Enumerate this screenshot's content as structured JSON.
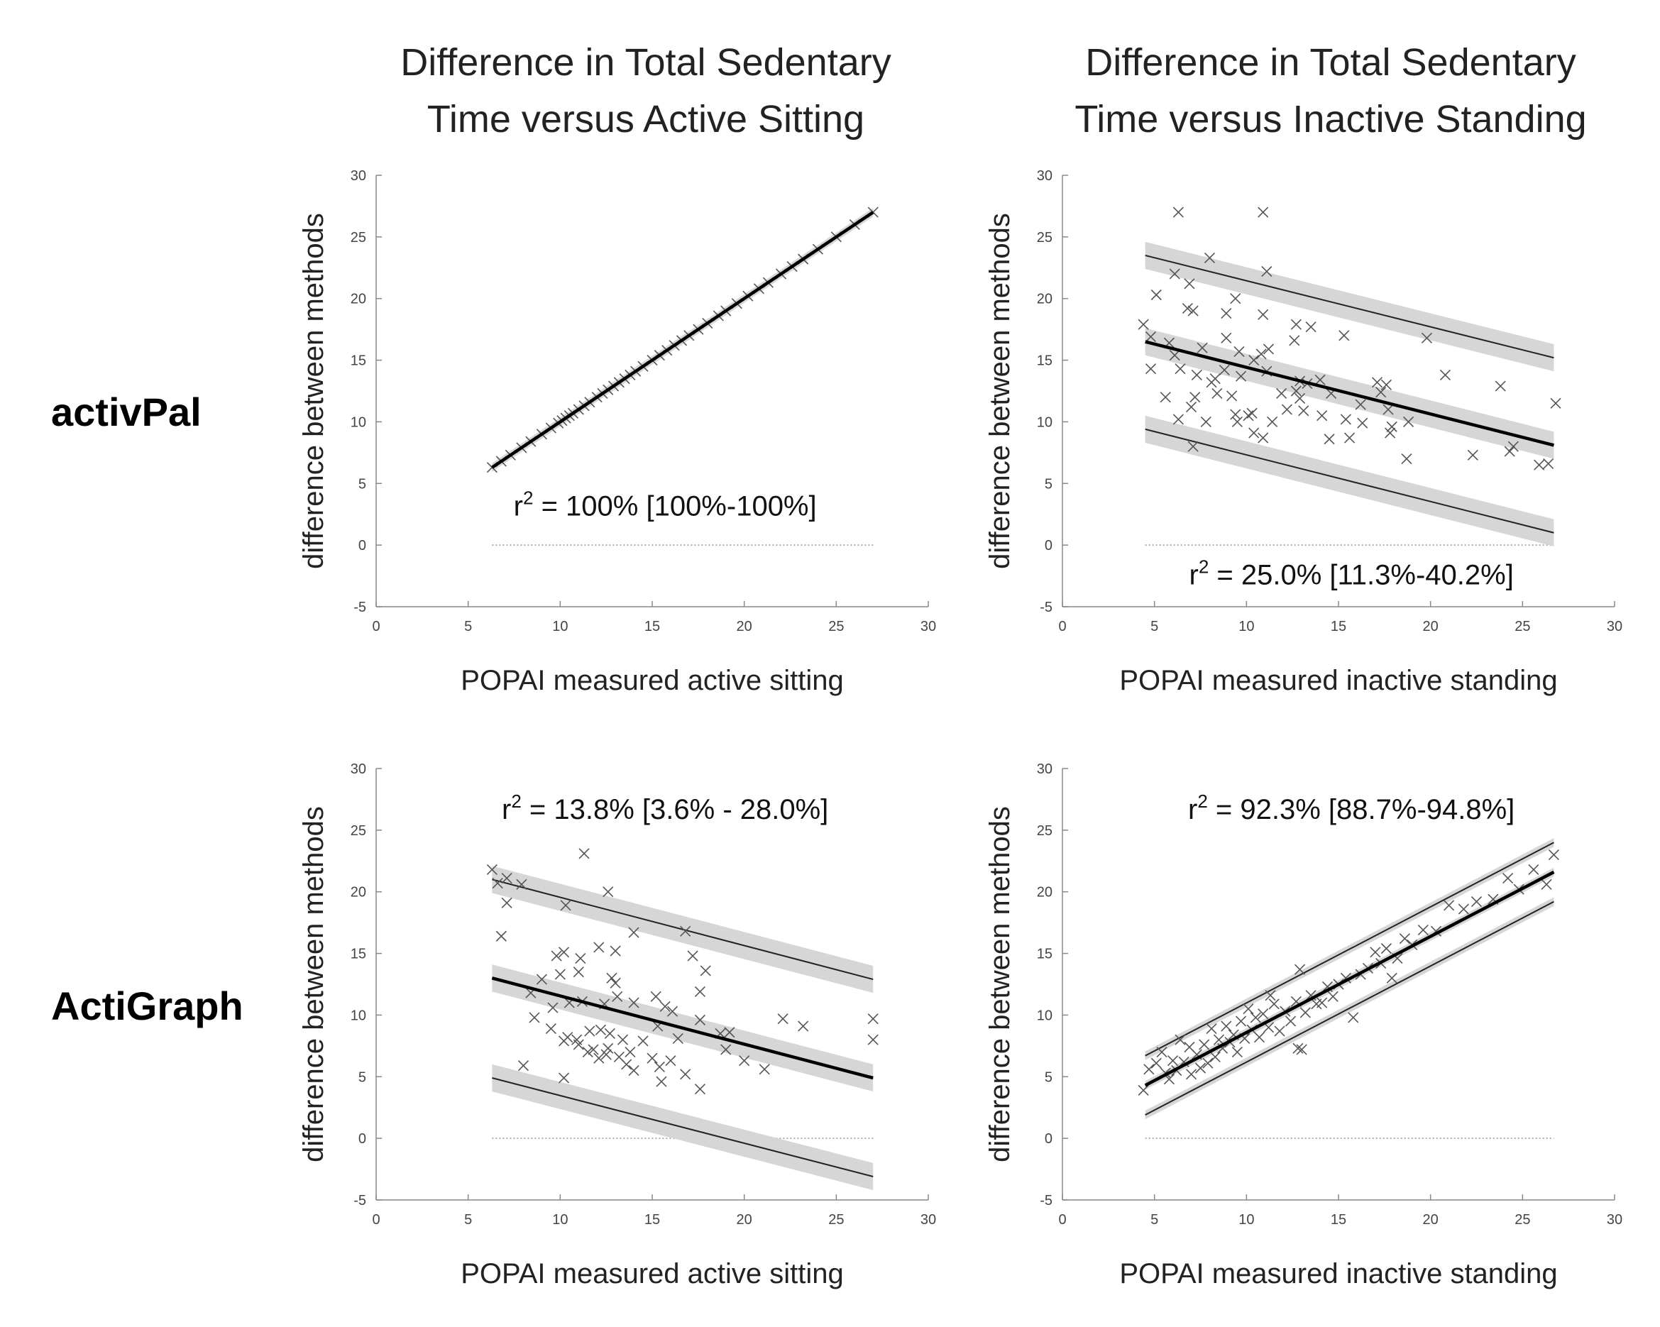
{
  "column_titles": [
    {
      "line1": "Difference in Total Sedentary",
      "line2": "Time versus Active Sitting"
    },
    {
      "line1": "Difference in Total Sedentary",
      "line2": "Time versus Inactive Standing"
    }
  ],
  "row_labels": [
    "activPal",
    "ActiGraph"
  ],
  "chart_data": [
    {
      "id": "activpal-active-sitting",
      "type": "scatter",
      "xlabel": "POPAI measured active sitting",
      "ylabel": "difference between methods",
      "xlim": [
        0,
        30
      ],
      "ylim": [
        -5,
        30
      ],
      "xticks": [
        0,
        5,
        10,
        15,
        20,
        25,
        30
      ],
      "yticks": [
        -5,
        0,
        5,
        10,
        15,
        20,
        25,
        30
      ],
      "annotation": {
        "r2": "r",
        "sup": "2",
        "rest": " = 100% [100%-100%]",
        "pos": [
          15.7,
          2.4
        ]
      },
      "fit": {
        "x": [
          6.3,
          27
        ],
        "y": [
          6.3,
          27
        ]
      },
      "limits": [],
      "band_half": 0.35,
      "zero_line": [
        6.3,
        27
      ],
      "points": [
        [
          6.3,
          6.3
        ],
        [
          6.8,
          6.8
        ],
        [
          7.3,
          7.3
        ],
        [
          7.9,
          7.9
        ],
        [
          8.4,
          8.4
        ],
        [
          9.0,
          9.0
        ],
        [
          9.5,
          9.5
        ],
        [
          9.9,
          9.9
        ],
        [
          10.1,
          10.1
        ],
        [
          10.3,
          10.3
        ],
        [
          10.5,
          10.5
        ],
        [
          10.7,
          10.7
        ],
        [
          11.0,
          11.0
        ],
        [
          11.3,
          11.3
        ],
        [
          11.6,
          11.6
        ],
        [
          12.0,
          12.0
        ],
        [
          12.3,
          12.3
        ],
        [
          12.6,
          12.6
        ],
        [
          12.9,
          12.9
        ],
        [
          13.2,
          13.2
        ],
        [
          13.5,
          13.5
        ],
        [
          13.8,
          13.8
        ],
        [
          14.1,
          14.1
        ],
        [
          14.5,
          14.5
        ],
        [
          15.0,
          15.0
        ],
        [
          15.4,
          15.4
        ],
        [
          15.8,
          15.8
        ],
        [
          16.2,
          16.2
        ],
        [
          16.6,
          16.6
        ],
        [
          17.0,
          17.0
        ],
        [
          17.5,
          17.5
        ],
        [
          18.0,
          18.0
        ],
        [
          18.6,
          18.6
        ],
        [
          19.0,
          19.0
        ],
        [
          19.6,
          19.6
        ],
        [
          20.2,
          20.2
        ],
        [
          20.8,
          20.8
        ],
        [
          21.3,
          21.3
        ],
        [
          22.0,
          22.0
        ],
        [
          22.6,
          22.6
        ],
        [
          23.2,
          23.2
        ],
        [
          24.0,
          24.0
        ],
        [
          25.0,
          25.0
        ],
        [
          26.0,
          26.0
        ],
        [
          27.0,
          27.0
        ]
      ]
    },
    {
      "id": "activpal-inactive-standing",
      "type": "scatter",
      "xlabel": "POPAI measured inactive standing",
      "ylabel": "difference between methods",
      "xlim": [
        0,
        30
      ],
      "ylim": [
        -5,
        30
      ],
      "xticks": [
        0,
        5,
        10,
        15,
        20,
        25,
        30
      ],
      "yticks": [
        -5,
        0,
        5,
        10,
        15,
        20,
        25,
        30
      ],
      "annotation": {
        "r2": "r",
        "sup": "2",
        "rest": " = 25.0% [11.3%-40.2%]",
        "pos": [
          15.7,
          -3.2
        ]
      },
      "fit": {
        "x": [
          4.5,
          26.7
        ],
        "y": [
          16.5,
          8.1
        ]
      },
      "limits": [
        {
          "x": [
            4.5,
            26.7
          ],
          "y": [
            23.5,
            15.2
          ]
        },
        {
          "x": [
            4.5,
            26.7
          ],
          "y": [
            9.4,
            1.0
          ]
        }
      ],
      "band_half": 1.1,
      "zero_line": [
        4.5,
        26.7
      ],
      "points": [
        [
          6.3,
          27.0
        ],
        [
          10.9,
          27.0
        ],
        [
          8.0,
          23.3
        ],
        [
          11.1,
          22.2
        ],
        [
          6.1,
          22.0
        ],
        [
          5.1,
          20.3
        ],
        [
          6.9,
          21.2
        ],
        [
          9.4,
          20.0
        ],
        [
          6.8,
          19.2
        ],
        [
          7.1,
          19.0
        ],
        [
          8.9,
          18.8
        ],
        [
          10.9,
          18.7
        ],
        [
          4.4,
          17.9
        ],
        [
          12.7,
          17.9
        ],
        [
          13.5,
          17.7
        ],
        [
          4.8,
          16.9
        ],
        [
          8.9,
          16.8
        ],
        [
          12.6,
          16.6
        ],
        [
          5.8,
          16.4
        ],
        [
          15.3,
          17.0
        ],
        [
          19.8,
          16.8
        ],
        [
          7.6,
          16.0
        ],
        [
          11.2,
          15.9
        ],
        [
          9.6,
          15.7
        ],
        [
          10.8,
          15.5
        ],
        [
          6.1,
          15.4
        ],
        [
          10.4,
          15.0
        ],
        [
          4.8,
          14.3
        ],
        [
          6.4,
          14.3
        ],
        [
          8.8,
          14.2
        ],
        [
          11.1,
          14.1
        ],
        [
          7.3,
          13.8
        ],
        [
          9.7,
          13.7
        ],
        [
          8.3,
          13.5
        ],
        [
          8.1,
          13.2
        ],
        [
          12.9,
          13.3
        ],
        [
          13.3,
          13.1
        ],
        [
          14.0,
          13.4
        ],
        [
          17.1,
          13.2
        ],
        [
          17.6,
          13.0
        ],
        [
          20.8,
          13.8
        ],
        [
          23.8,
          12.9
        ],
        [
          5.6,
          12.0
        ],
        [
          7.2,
          12.0
        ],
        [
          8.4,
          12.3
        ],
        [
          9.2,
          12.1
        ],
        [
          11.9,
          12.3
        ],
        [
          12.7,
          12.5
        ],
        [
          12.9,
          11.9
        ],
        [
          14.6,
          12.3
        ],
        [
          16.2,
          11.4
        ],
        [
          17.3,
          12.4
        ],
        [
          7.0,
          11.2
        ],
        [
          9.4,
          10.6
        ],
        [
          10.3,
          10.7
        ],
        [
          12.2,
          11.0
        ],
        [
          13.1,
          10.9
        ],
        [
          14.1,
          10.5
        ],
        [
          15.4,
          10.2
        ],
        [
          17.7,
          11.0
        ],
        [
          26.8,
          11.5
        ],
        [
          6.3,
          10.2
        ],
        [
          7.8,
          10.0
        ],
        [
          9.5,
          10.0
        ],
        [
          10.1,
          10.5
        ],
        [
          11.4,
          10.0
        ],
        [
          16.3,
          9.9
        ],
        [
          17.9,
          9.6
        ],
        [
          18.8,
          10.0
        ],
        [
          10.4,
          9.1
        ],
        [
          10.9,
          8.7
        ],
        [
          14.5,
          8.6
        ],
        [
          15.6,
          8.7
        ],
        [
          17.8,
          9.1
        ],
        [
          7.1,
          8.0
        ],
        [
          18.7,
          7.0
        ],
        [
          22.3,
          7.3
        ],
        [
          24.3,
          7.6
        ],
        [
          24.5,
          8.0
        ],
        [
          25.9,
          6.5
        ],
        [
          26.4,
          6.6
        ]
      ]
    },
    {
      "id": "actigraph-active-sitting",
      "type": "scatter",
      "xlabel": "POPAI measured active sitting",
      "ylabel": "difference between methods",
      "xlim": [
        0,
        30
      ],
      "ylim": [
        -5,
        30
      ],
      "xticks": [
        0,
        5,
        10,
        15,
        20,
        25,
        30
      ],
      "yticks": [
        -5,
        0,
        5,
        10,
        15,
        20,
        25,
        30
      ],
      "annotation": {
        "r2": "r",
        "sup": "2",
        "rest": " = 13.8% [3.6% - 28.0%]",
        "pos": [
          15.7,
          25.9
        ]
      },
      "fit": {
        "x": [
          6.3,
          27
        ],
        "y": [
          13.0,
          4.9
        ]
      },
      "limits": [
        {
          "x": [
            6.3,
            27
          ],
          "y": [
            21.0,
            12.9
          ]
        },
        {
          "x": [
            6.3,
            27
          ],
          "y": [
            4.9,
            -3.1
          ]
        }
      ],
      "band_half": 1.1,
      "zero_line": [
        6.3,
        27
      ],
      "points": [
        [
          11.3,
          23.1
        ],
        [
          6.3,
          21.8
        ],
        [
          6.6,
          20.7
        ],
        [
          7.1,
          21.1
        ],
        [
          7.9,
          20.6
        ],
        [
          12.6,
          20.0
        ],
        [
          10.3,
          18.9
        ],
        [
          7.1,
          19.1
        ],
        [
          9.8,
          14.8
        ],
        [
          10.2,
          15.1
        ],
        [
          12.1,
          15.5
        ],
        [
          13.0,
          15.2
        ],
        [
          14.0,
          16.7
        ],
        [
          16.8,
          16.8
        ],
        [
          6.8,
          16.4
        ],
        [
          8.4,
          11.8
        ],
        [
          9.0,
          12.9
        ],
        [
          10.0,
          13.3
        ],
        [
          11.0,
          13.5
        ],
        [
          11.1,
          14.6
        ],
        [
          12.8,
          13.0
        ],
        [
          13.0,
          12.6
        ],
        [
          15.2,
          11.5
        ],
        [
          17.2,
          14.8
        ],
        [
          17.9,
          13.6
        ],
        [
          17.6,
          11.9
        ],
        [
          9.6,
          10.6
        ],
        [
          10.5,
          11.0
        ],
        [
          11.2,
          11.1
        ],
        [
          12.4,
          10.9
        ],
        [
          13.1,
          11.5
        ],
        [
          14.0,
          11.0
        ],
        [
          15.7,
          10.7
        ],
        [
          16.1,
          10.3
        ],
        [
          8.6,
          9.8
        ],
        [
          9.5,
          8.9
        ],
        [
          10.4,
          8.2
        ],
        [
          10.9,
          8.0
        ],
        [
          11.6,
          8.7
        ],
        [
          12.2,
          8.8
        ],
        [
          12.7,
          8.5
        ],
        [
          13.4,
          8.0
        ],
        [
          14.5,
          7.9
        ],
        [
          15.3,
          9.1
        ],
        [
          16.4,
          8.1
        ],
        [
          17.6,
          9.6
        ],
        [
          18.7,
          8.5
        ],
        [
          19.2,
          8.6
        ],
        [
          22.1,
          9.7
        ],
        [
          23.2,
          9.1
        ],
        [
          27.0,
          9.7
        ],
        [
          27.0,
          8.0
        ],
        [
          8.0,
          5.9
        ],
        [
          10.2,
          7.9
        ],
        [
          11.0,
          7.6
        ],
        [
          11.5,
          7.0
        ],
        [
          12.1,
          6.5
        ],
        [
          12.6,
          7.3
        ],
        [
          13.2,
          6.6
        ],
        [
          13.6,
          6.0
        ],
        [
          14.0,
          5.5
        ],
        [
          15.0,
          6.5
        ],
        [
          15.4,
          5.8
        ],
        [
          16.0,
          6.3
        ],
        [
          16.8,
          5.2
        ],
        [
          17.6,
          4.0
        ],
        [
          19.0,
          7.2
        ],
        [
          20.0,
          6.3
        ],
        [
          21.1,
          5.6
        ],
        [
          10.2,
          4.9
        ],
        [
          15.5,
          4.6
        ],
        [
          12.5,
          6.8
        ],
        [
          11.8,
          7.2
        ],
        [
          13.8,
          7.0
        ]
      ]
    },
    {
      "id": "actigraph-inactive-standing",
      "type": "scatter",
      "xlabel": "POPAI measured inactive standing",
      "ylabel": "difference between methods",
      "xlim": [
        0,
        30
      ],
      "ylim": [
        -5,
        30
      ],
      "xticks": [
        0,
        5,
        10,
        15,
        20,
        25,
        30
      ],
      "yticks": [
        -5,
        0,
        5,
        10,
        15,
        20,
        25,
        30
      ],
      "annotation": {
        "r2": "r",
        "sup": "2",
        "rest": " = 92.3% [88.7%-94.8%]",
        "pos": [
          15.7,
          25.9
        ]
      },
      "fit": {
        "x": [
          4.5,
          26.7
        ],
        "y": [
          4.3,
          21.6
        ]
      },
      "limits": [
        {
          "x": [
            4.5,
            26.7
          ],
          "y": [
            6.7,
            24.0
          ]
        },
        {
          "x": [
            4.5,
            26.7
          ],
          "y": [
            1.9,
            19.2
          ]
        }
      ],
      "band_half": 0.35,
      "zero_line": [
        4.5,
        26.7
      ],
      "points": [
        [
          4.4,
          3.9
        ],
        [
          4.7,
          5.6
        ],
        [
          5.1,
          6.1
        ],
        [
          5.4,
          7.0
        ],
        [
          5.6,
          5.3
        ],
        [
          5.8,
          4.8
        ],
        [
          6.0,
          6.3
        ],
        [
          6.2,
          5.5
        ],
        [
          6.4,
          8.0
        ],
        [
          6.6,
          6.2
        ],
        [
          6.9,
          7.4
        ],
        [
          7.0,
          5.2
        ],
        [
          7.3,
          6.8
        ],
        [
          7.5,
          5.7
        ],
        [
          7.7,
          7.6
        ],
        [
          7.9,
          6.1
        ],
        [
          8.1,
          8.9
        ],
        [
          8.3,
          6.6
        ],
        [
          8.5,
          8.0
        ],
        [
          8.7,
          7.3
        ],
        [
          8.9,
          9.1
        ],
        [
          9.1,
          7.8
        ],
        [
          9.3,
          8.4
        ],
        [
          9.5,
          7.0
        ],
        [
          9.7,
          9.5
        ],
        [
          9.9,
          8.1
        ],
        [
          10.1,
          10.5
        ],
        [
          10.3,
          8.8
        ],
        [
          10.5,
          9.8
        ],
        [
          10.7,
          8.2
        ],
        [
          10.9,
          10.1
        ],
        [
          11.2,
          9.0
        ],
        [
          11.5,
          10.9
        ],
        [
          11.8,
          8.7
        ],
        [
          12.1,
          10.3
        ],
        [
          12.4,
          9.5
        ],
        [
          12.7,
          11.1
        ],
        [
          12.8,
          7.3
        ],
        [
          13.0,
          7.2
        ],
        [
          13.2,
          10.2
        ],
        [
          13.5,
          11.6
        ],
        [
          13.8,
          10.9
        ],
        [
          14.1,
          11.0
        ],
        [
          14.4,
          12.3
        ],
        [
          14.7,
          11.5
        ],
        [
          15.0,
          12.5
        ],
        [
          15.4,
          13.0
        ],
        [
          15.8,
          9.8
        ],
        [
          16.2,
          13.3
        ],
        [
          16.6,
          13.8
        ],
        [
          17.0,
          15.1
        ],
        [
          17.3,
          14.2
        ],
        [
          17.6,
          15.4
        ],
        [
          17.9,
          13.0
        ],
        [
          18.2,
          14.6
        ],
        [
          18.6,
          16.2
        ],
        [
          19.0,
          15.7
        ],
        [
          19.6,
          16.9
        ],
        [
          20.3,
          16.8
        ],
        [
          21.0,
          18.9
        ],
        [
          21.8,
          18.6
        ],
        [
          22.5,
          19.2
        ],
        [
          23.4,
          19.4
        ],
        [
          24.2,
          21.1
        ],
        [
          24.8,
          20.2
        ],
        [
          25.6,
          21.8
        ],
        [
          26.3,
          20.6
        ],
        [
          26.7,
          23.0
        ],
        [
          12.9,
          13.7
        ],
        [
          11.3,
          11.6
        ]
      ]
    }
  ]
}
